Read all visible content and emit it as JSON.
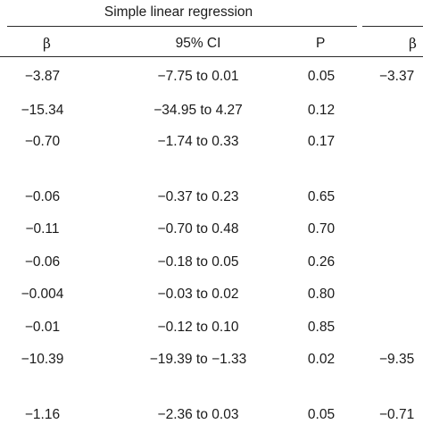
{
  "table": {
    "group_title": "Simple linear regression",
    "headers": {
      "beta": "β",
      "ci": "95% CI",
      "p": "P",
      "beta2": "β"
    },
    "rows": [
      {
        "beta": "−3.87",
        "ci": "−7.75 to 0.01",
        "p": "0.05",
        "beta2": "−3.37"
      },
      {
        "beta": "−15.34",
        "ci": "−34.95 to 4.27",
        "p": "0.12",
        "beta2": ""
      },
      {
        "beta": "−0.70",
        "ci": "−1.74 to 0.33",
        "p": "0.17",
        "beta2": ""
      },
      {
        "beta": "−0.06",
        "ci": "−0.37 to 0.23",
        "p": "0.65",
        "beta2": ""
      },
      {
        "beta": "−0.11",
        "ci": "−0.70 to 0.48",
        "p": "0.70",
        "beta2": ""
      },
      {
        "beta": "−0.06",
        "ci": "−0.18 to 0.05",
        "p": "0.26",
        "beta2": ""
      },
      {
        "beta": "−0.004",
        "ci": "−0.03 to 0.02",
        "p": "0.80",
        "beta2": ""
      },
      {
        "beta": "−0.01",
        "ci": "−0.12 to 0.10",
        "p": "0.85",
        "beta2": ""
      },
      {
        "beta": "−10.39",
        "ci": "−19.39 to −1.33",
        "p": "0.02",
        "beta2": "−9.35"
      },
      {
        "beta": "−1.16",
        "ci": "−2.36 to 0.03",
        "p": "0.05",
        "beta2": "−0.71"
      }
    ]
  }
}
